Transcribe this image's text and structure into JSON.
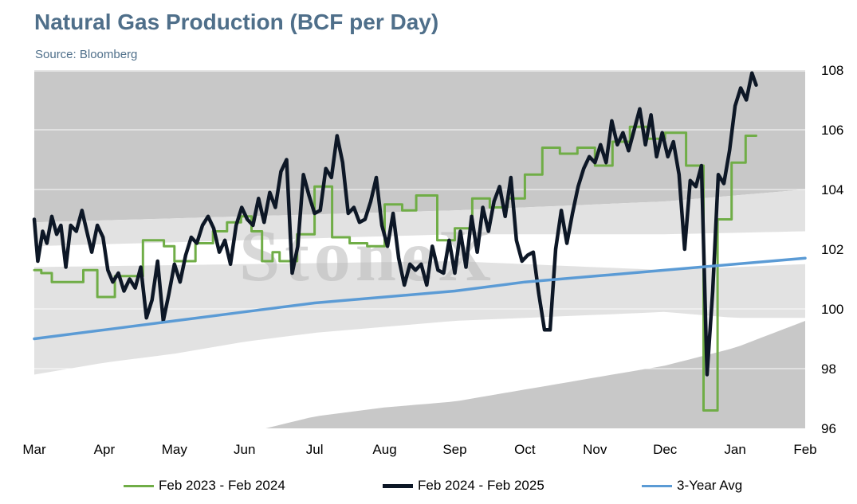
{
  "title": "Natural Gas Production (BCF per Day)",
  "source": "Source: Bloomberg",
  "watermark": "StoneX",
  "colors": {
    "series_2023": "#70ad47",
    "series_2024": "#0d1726",
    "avg": "#5b9bd5",
    "band_dark": "#c8c8c8",
    "band_light": "#e2e2e2",
    "gridline": "#ffffff"
  },
  "chart_data": {
    "type": "line",
    "x_categories": [
      "Mar",
      "Apr",
      "May",
      "Jun",
      "Jul",
      "Aug",
      "Sep",
      "Oct",
      "Nov",
      "Dec",
      "Jan",
      "Feb"
    ],
    "y_axis": {
      "ticks": [
        96,
        98,
        100,
        102,
        104,
        106,
        108
      ],
      "ylim": [
        96,
        108
      ],
      "side": "right"
    },
    "grid": true,
    "legend_position": "bottom",
    "range_bands": {
      "upper": [
        [
          0,
          102.9
        ],
        [
          3,
          103.1
        ],
        [
          6,
          103.3
        ],
        [
          9,
          103.6
        ],
        [
          11,
          104.0
        ]
      ],
      "upper_mid": [
        [
          0,
          102.1
        ],
        [
          3,
          102.3
        ],
        [
          6,
          102.5
        ],
        [
          9,
          102.5
        ],
        [
          11,
          102.6
        ]
      ],
      "lower_mid": [
        [
          0,
          101.4
        ],
        [
          3,
          101.5
        ],
        [
          6,
          101.6
        ],
        [
          9,
          101.3
        ],
        [
          11,
          101.5
        ]
      ],
      "lower": [
        [
          0,
          97.8
        ],
        [
          1,
          98.2
        ],
        [
          2,
          98.5
        ],
        [
          3,
          98.9
        ],
        [
          4,
          99.2
        ],
        [
          5,
          99.4
        ],
        [
          6,
          99.6
        ],
        [
          7,
          99.7
        ],
        [
          8,
          99.8
        ],
        [
          9,
          99.9
        ],
        [
          10,
          99.7
        ],
        [
          11,
          99.7
        ]
      ],
      "lowest": [
        [
          3.3,
          96.0
        ],
        [
          4,
          96.4
        ],
        [
          5,
          96.7
        ],
        [
          6,
          96.9
        ],
        [
          7,
          97.3
        ],
        [
          8,
          97.7
        ],
        [
          9,
          98.1
        ],
        [
          10,
          98.7
        ],
        [
          11,
          99.6
        ]
      ]
    },
    "series": [
      {
        "name": "Feb 2023 - Feb 2024",
        "points": [
          [
            0,
            101.3
          ],
          [
            0.1,
            101.3
          ],
          [
            0.1,
            101.2
          ],
          [
            0.25,
            101.2
          ],
          [
            0.25,
            100.9
          ],
          [
            0.7,
            100.9
          ],
          [
            0.7,
            101.3
          ],
          [
            0.9,
            101.3
          ],
          [
            0.9,
            100.4
          ],
          [
            1.15,
            100.4
          ],
          [
            1.15,
            101.1
          ],
          [
            1.55,
            101.1
          ],
          [
            1.55,
            102.3
          ],
          [
            1.85,
            102.3
          ],
          [
            1.85,
            102.1
          ],
          [
            2.0,
            102.1
          ],
          [
            2.0,
            101.6
          ],
          [
            2.3,
            101.6
          ],
          [
            2.3,
            102.2
          ],
          [
            2.55,
            102.2
          ],
          [
            2.55,
            102.6
          ],
          [
            2.75,
            102.6
          ],
          [
            2.75,
            102.9
          ],
          [
            2.95,
            102.9
          ],
          [
            2.95,
            103.1
          ],
          [
            3.1,
            103.1
          ],
          [
            3.1,
            102.6
          ],
          [
            3.25,
            102.6
          ],
          [
            3.25,
            101.6
          ],
          [
            3.4,
            101.6
          ],
          [
            3.4,
            101.9
          ],
          [
            3.5,
            101.9
          ],
          [
            3.5,
            101.6
          ],
          [
            3.75,
            101.6
          ],
          [
            3.75,
            102.5
          ],
          [
            4.0,
            102.5
          ],
          [
            4.0,
            104.1
          ],
          [
            4.25,
            104.1
          ],
          [
            4.25,
            102.4
          ],
          [
            4.5,
            102.4
          ],
          [
            4.5,
            102.2
          ],
          [
            4.75,
            102.2
          ],
          [
            4.75,
            102.1
          ],
          [
            5.0,
            102.1
          ],
          [
            5.0,
            103.5
          ],
          [
            5.25,
            103.5
          ],
          [
            5.25,
            103.3
          ],
          [
            5.45,
            103.3
          ],
          [
            5.45,
            103.8
          ],
          [
            5.75,
            103.8
          ],
          [
            5.75,
            102.3
          ],
          [
            6.0,
            102.3
          ],
          [
            6.0,
            102.7
          ],
          [
            6.25,
            102.7
          ],
          [
            6.25,
            103.7
          ],
          [
            6.5,
            103.7
          ],
          [
            6.5,
            103.4
          ],
          [
            6.75,
            103.4
          ],
          [
            6.75,
            103.7
          ],
          [
            7.0,
            103.7
          ],
          [
            7.0,
            104.5
          ],
          [
            7.25,
            104.5
          ],
          [
            7.25,
            105.4
          ],
          [
            7.5,
            105.4
          ],
          [
            7.5,
            105.2
          ],
          [
            7.75,
            105.2
          ],
          [
            7.75,
            105.4
          ],
          [
            8.0,
            105.4
          ],
          [
            8.0,
            104.8
          ],
          [
            8.25,
            104.8
          ],
          [
            8.25,
            105.6
          ],
          [
            8.5,
            105.6
          ],
          [
            8.5,
            106.1
          ],
          [
            8.75,
            106.1
          ],
          [
            8.75,
            105.7
          ],
          [
            9.0,
            105.7
          ],
          [
            9.0,
            105.9
          ],
          [
            9.3,
            105.9
          ],
          [
            9.3,
            104.8
          ],
          [
            9.55,
            104.8
          ],
          [
            9.55,
            96.6
          ],
          [
            9.75,
            96.6
          ],
          [
            9.75,
            103.0
          ],
          [
            9.95,
            103.0
          ],
          [
            9.95,
            104.9
          ],
          [
            10.15,
            104.9
          ],
          [
            10.15,
            105.8
          ],
          [
            10.3,
            105.8
          ]
        ]
      },
      {
        "name": "Feb 2024 - Feb 2025",
        "points": [
          [
            0,
            103.0
          ],
          [
            0.05,
            101.6
          ],
          [
            0.12,
            102.6
          ],
          [
            0.18,
            102.2
          ],
          [
            0.25,
            103.1
          ],
          [
            0.32,
            102.5
          ],
          [
            0.38,
            102.8
          ],
          [
            0.45,
            101.4
          ],
          [
            0.52,
            102.8
          ],
          [
            0.6,
            102.6
          ],
          [
            0.68,
            103.3
          ],
          [
            0.75,
            102.6
          ],
          [
            0.82,
            101.9
          ],
          [
            0.9,
            102.8
          ],
          [
            0.98,
            102.4
          ],
          [
            1.05,
            101.3
          ],
          [
            1.12,
            100.9
          ],
          [
            1.2,
            101.2
          ],
          [
            1.28,
            100.6
          ],
          [
            1.36,
            101.0
          ],
          [
            1.44,
            100.7
          ],
          [
            1.52,
            101.4
          ],
          [
            1.6,
            99.7
          ],
          [
            1.68,
            100.3
          ],
          [
            1.76,
            101.6
          ],
          [
            1.84,
            99.6
          ],
          [
            1.92,
            100.5
          ],
          [
            2.0,
            101.5
          ],
          [
            2.08,
            100.9
          ],
          [
            2.16,
            101.8
          ],
          [
            2.24,
            102.4
          ],
          [
            2.32,
            102.2
          ],
          [
            2.4,
            102.8
          ],
          [
            2.48,
            103.1
          ],
          [
            2.56,
            102.7
          ],
          [
            2.64,
            101.9
          ],
          [
            2.72,
            102.3
          ],
          [
            2.8,
            101.5
          ],
          [
            2.88,
            102.8
          ],
          [
            2.96,
            103.4
          ],
          [
            3.04,
            103.0
          ],
          [
            3.12,
            102.8
          ],
          [
            3.2,
            103.7
          ],
          [
            3.28,
            102.9
          ],
          [
            3.36,
            103.9
          ],
          [
            3.44,
            103.4
          ],
          [
            3.52,
            104.6
          ],
          [
            3.6,
            105.0
          ],
          [
            3.68,
            101.2
          ],
          [
            3.76,
            102.1
          ],
          [
            3.84,
            104.5
          ],
          [
            3.92,
            103.8
          ],
          [
            4.0,
            103.2
          ],
          [
            4.08,
            103.3
          ],
          [
            4.16,
            104.7
          ],
          [
            4.24,
            104.4
          ],
          [
            4.32,
            105.8
          ],
          [
            4.4,
            104.9
          ],
          [
            4.48,
            103.2
          ],
          [
            4.56,
            103.4
          ],
          [
            4.64,
            102.9
          ],
          [
            4.72,
            103.0
          ],
          [
            4.8,
            103.6
          ],
          [
            4.88,
            104.4
          ],
          [
            4.96,
            102.8
          ],
          [
            5.04,
            102.1
          ],
          [
            5.12,
            103.2
          ],
          [
            5.2,
            101.7
          ],
          [
            5.28,
            100.8
          ],
          [
            5.36,
            101.5
          ],
          [
            5.44,
            101.3
          ],
          [
            5.52,
            101.5
          ],
          [
            5.6,
            100.8
          ],
          [
            5.68,
            102.1
          ],
          [
            5.76,
            101.3
          ],
          [
            5.84,
            101.2
          ],
          [
            5.92,
            102.3
          ],
          [
            6.0,
            101.2
          ],
          [
            6.08,
            102.6
          ],
          [
            6.16,
            101.4
          ],
          [
            6.24,
            103.1
          ],
          [
            6.32,
            101.9
          ],
          [
            6.4,
            103.4
          ],
          [
            6.48,
            102.6
          ],
          [
            6.56,
            103.6
          ],
          [
            6.64,
            104.1
          ],
          [
            6.72,
            103.1
          ],
          [
            6.8,
            104.4
          ],
          [
            6.88,
            102.3
          ],
          [
            6.96,
            101.6
          ],
          [
            7.04,
            101.8
          ],
          [
            7.12,
            101.9
          ],
          [
            7.2,
            100.5
          ],
          [
            7.28,
            99.3
          ],
          [
            7.36,
            99.3
          ],
          [
            7.44,
            102.0
          ],
          [
            7.52,
            103.3
          ],
          [
            7.6,
            102.2
          ],
          [
            7.68,
            103.2
          ],
          [
            7.76,
            104.1
          ],
          [
            7.84,
            104.7
          ],
          [
            7.92,
            105.1
          ],
          [
            8.0,
            104.9
          ],
          [
            8.08,
            105.5
          ],
          [
            8.16,
            104.9
          ],
          [
            8.24,
            106.3
          ],
          [
            8.32,
            105.5
          ],
          [
            8.4,
            105.9
          ],
          [
            8.48,
            105.3
          ],
          [
            8.56,
            106.0
          ],
          [
            8.64,
            106.7
          ],
          [
            8.72,
            105.5
          ],
          [
            8.8,
            106.5
          ],
          [
            8.88,
            105.1
          ],
          [
            8.96,
            105.9
          ],
          [
            9.04,
            105.1
          ],
          [
            9.12,
            105.6
          ],
          [
            9.2,
            104.5
          ],
          [
            9.28,
            102.0
          ],
          [
            9.36,
            104.3
          ],
          [
            9.44,
            104.1
          ],
          [
            9.52,
            104.8
          ],
          [
            9.6,
            97.8
          ],
          [
            9.68,
            100.6
          ],
          [
            9.76,
            104.5
          ],
          [
            9.84,
            104.2
          ],
          [
            9.92,
            105.3
          ],
          [
            10.0,
            106.8
          ],
          [
            10.08,
            107.4
          ],
          [
            10.16,
            107.0
          ],
          [
            10.24,
            107.9
          ],
          [
            10.3,
            107.5
          ]
        ]
      },
      {
        "name": "3-Year Avg",
        "points": [
          [
            0,
            99.0
          ],
          [
            1,
            99.3
          ],
          [
            2,
            99.6
          ],
          [
            3,
            99.9
          ],
          [
            4,
            100.2
          ],
          [
            5,
            100.4
          ],
          [
            6,
            100.6
          ],
          [
            7,
            100.9
          ],
          [
            8,
            101.1
          ],
          [
            9,
            101.3
          ],
          [
            10,
            101.5
          ],
          [
            11,
            101.7
          ]
        ]
      }
    ]
  }
}
